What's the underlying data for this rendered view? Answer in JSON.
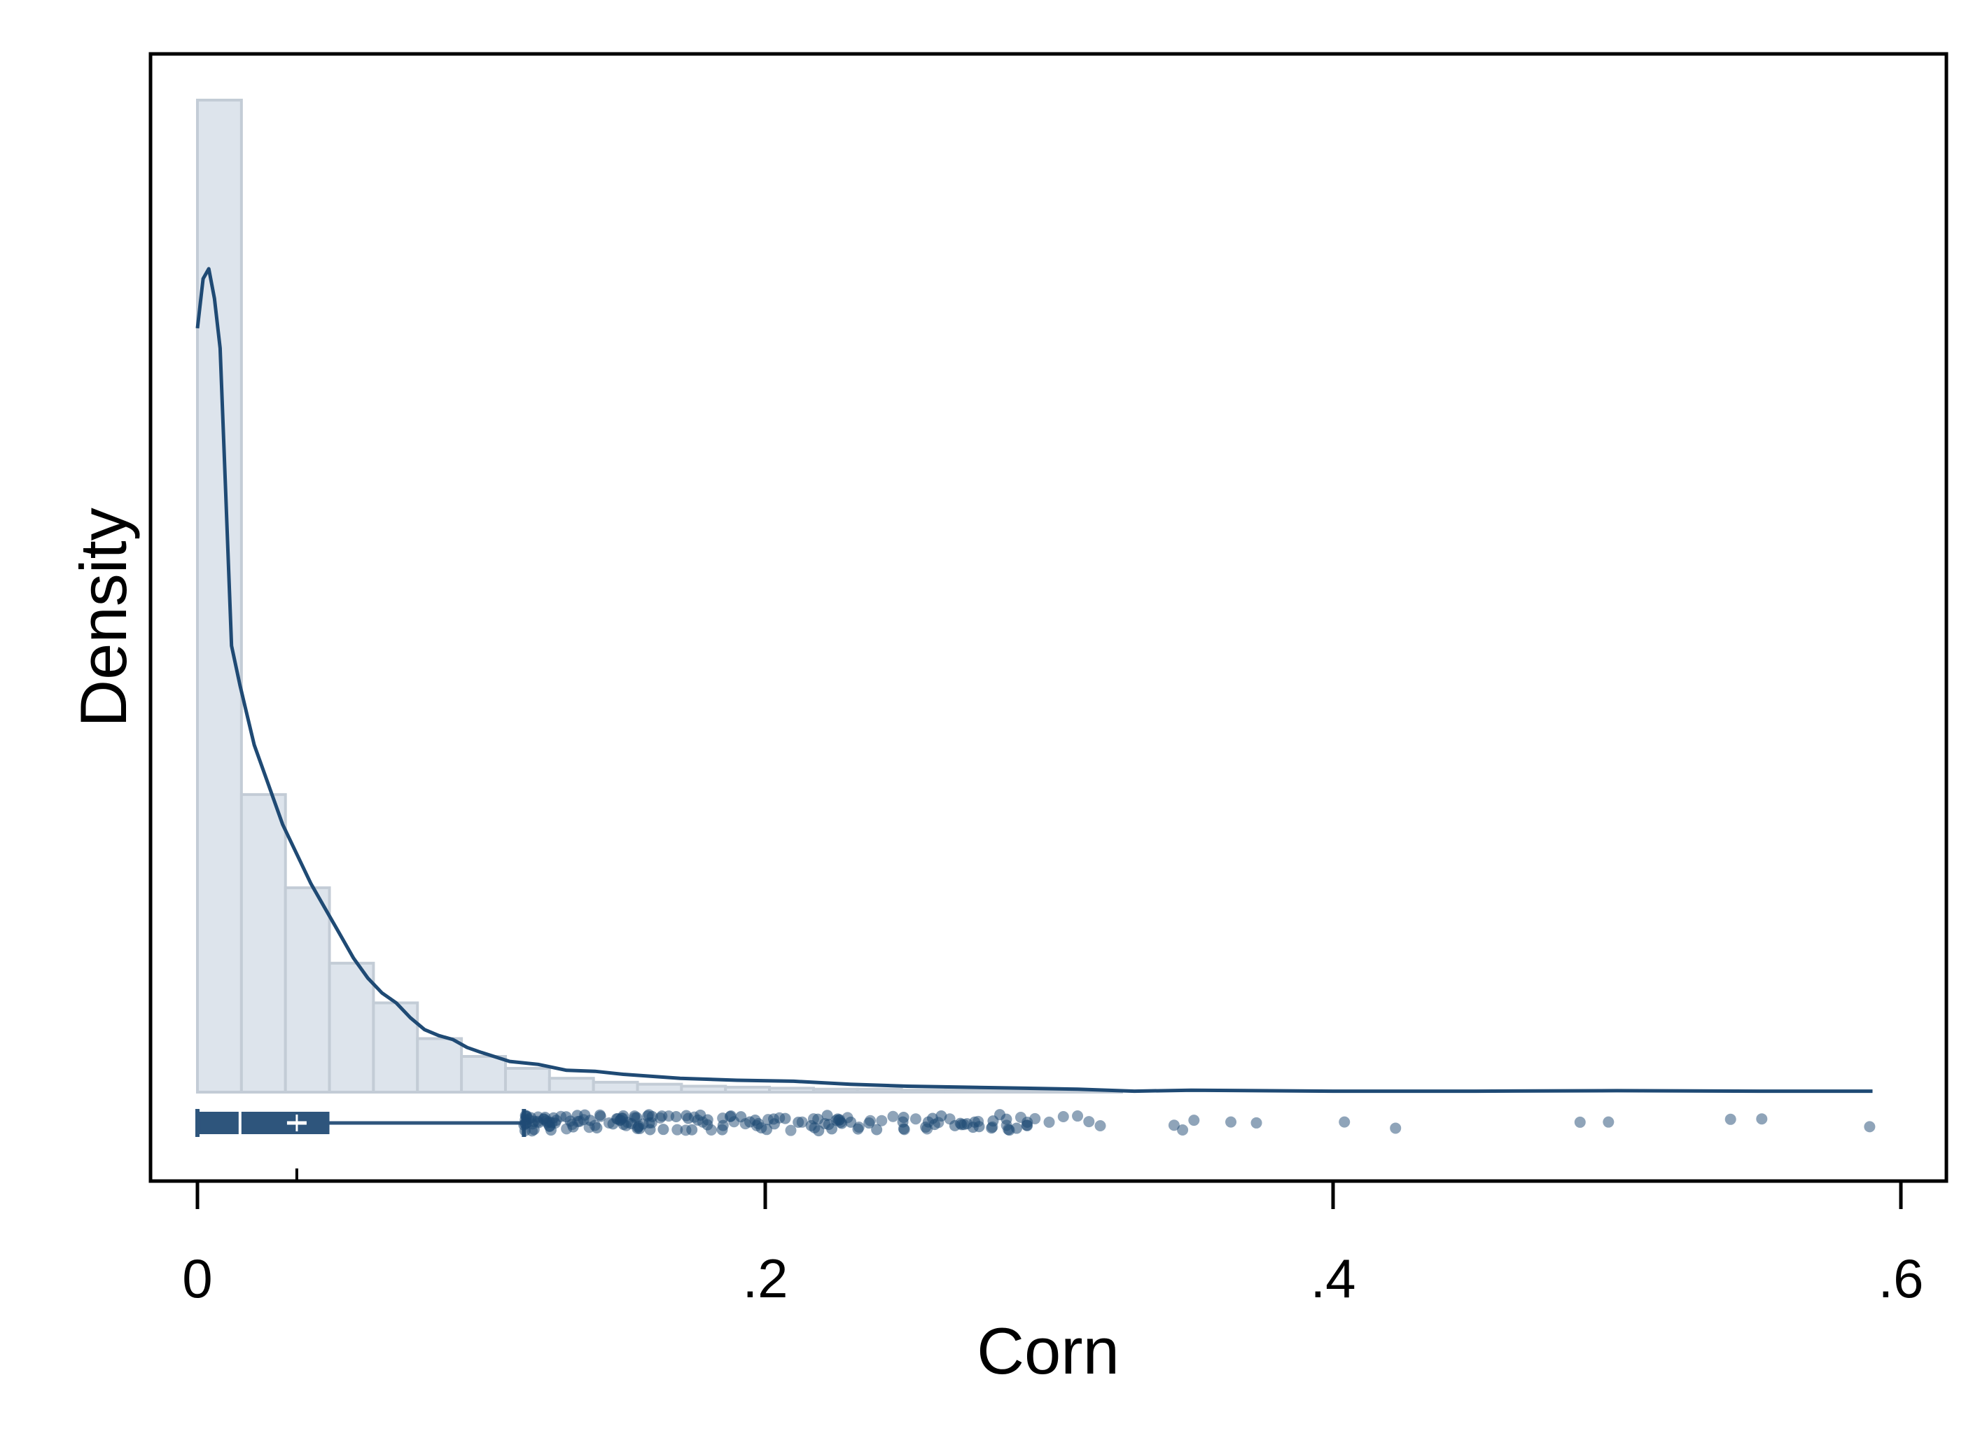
{
  "chart_data": {
    "type": "histogram",
    "xlabel": "Corn",
    "ylabel": "Density",
    "xlim": [
      -0.016,
      0.616
    ],
    "x_ticks": [
      0,
      0.2,
      0.4,
      0.6
    ],
    "x_tick_labels": [
      "0",
      ".2",
      ".4",
      ".6"
    ],
    "y_ticks_shown": false,
    "grid": false,
    "legend": "none",
    "histogram": {
      "bin_edges": [
        0,
        0.0155,
        0.031,
        0.0465,
        0.062,
        0.0775,
        0.093,
        0.1085,
        0.124,
        0.1395,
        0.155,
        0.1705,
        0.186,
        0.2015,
        0.217,
        0.2325,
        0.248,
        0.2635,
        0.279,
        0.2945,
        0.31,
        0.3255
      ],
      "density": [
        100,
        30,
        20.6,
        13,
        9,
        5.4,
        3.6,
        2.4,
        1.4,
        1.0,
        0.8,
        0.6,
        0.5,
        0.4,
        0.3,
        0.3,
        0.2,
        0.2,
        0.15,
        0.1,
        0.1
      ]
    },
    "kde": {
      "x": [
        0,
        0.002,
        0.004,
        0.006,
        0.008,
        0.01,
        0.012,
        0.015,
        0.02,
        0.025,
        0.03,
        0.035,
        0.04,
        0.045,
        0.05,
        0.055,
        0.06,
        0.065,
        0.07,
        0.075,
        0.08,
        0.085,
        0.09,
        0.095,
        0.1,
        0.11,
        0.12,
        0.13,
        0.14,
        0.15,
        0.17,
        0.19,
        0.21,
        0.23,
        0.25,
        0.27,
        0.29,
        0.31,
        0.33,
        0.35,
        0.4,
        0.45,
        0.5,
        0.55,
        0.59
      ],
      "density": [
        77,
        82,
        83,
        80,
        75,
        60,
        45,
        41,
        35,
        31,
        27,
        24,
        21,
        18.5,
        16,
        13.5,
        11.5,
        10,
        9,
        7.5,
        6.3,
        5.7,
        5.3,
        4.5,
        4,
        3.1,
        2.8,
        2.2,
        2.1,
        1.8,
        1.4,
        1.2,
        1.1,
        0.8,
        0.6,
        0.5,
        0.4,
        0.3,
        0.1,
        0.2,
        0.1,
        0.1,
        0.15,
        0.1,
        0.1
      ]
    },
    "boxplot": {
      "whisker_low": 0,
      "q1": 0.0005,
      "median": 0.015,
      "mean": 0.035,
      "q3": 0.046,
      "whisker_high": 0.115,
      "outliers": [
        0.116,
        0.118,
        0.12,
        0.122,
        0.124,
        0.126,
        0.128,
        0.13,
        0.132,
        0.134,
        0.136,
        0.138,
        0.14,
        0.142,
        0.145,
        0.148,
        0.151,
        0.154,
        0.157,
        0.16,
        0.163,
        0.166,
        0.169,
        0.172,
        0.175,
        0.178,
        0.181,
        0.185,
        0.189,
        0.193,
        0.197,
        0.201,
        0.205,
        0.209,
        0.213,
        0.217,
        0.221,
        0.225,
        0.229,
        0.233,
        0.237,
        0.241,
        0.245,
        0.249,
        0.253,
        0.257,
        0.261,
        0.265,
        0.27,
        0.275,
        0.28,
        0.285,
        0.29,
        0.295,
        0.3,
        0.305,
        0.31,
        0.314,
        0.318,
        0.344,
        0.347,
        0.351,
        0.364,
        0.373,
        0.404,
        0.422,
        0.487,
        0.497,
        0.54,
        0.551,
        0.589
      ]
    },
    "colors": {
      "bar_fill": "#dde4ec",
      "bar_stroke": "#c3ccd6",
      "line": "#1f4a74",
      "box": "#2e557c",
      "dots": "#1f4a74",
      "frame": "#000000"
    }
  }
}
